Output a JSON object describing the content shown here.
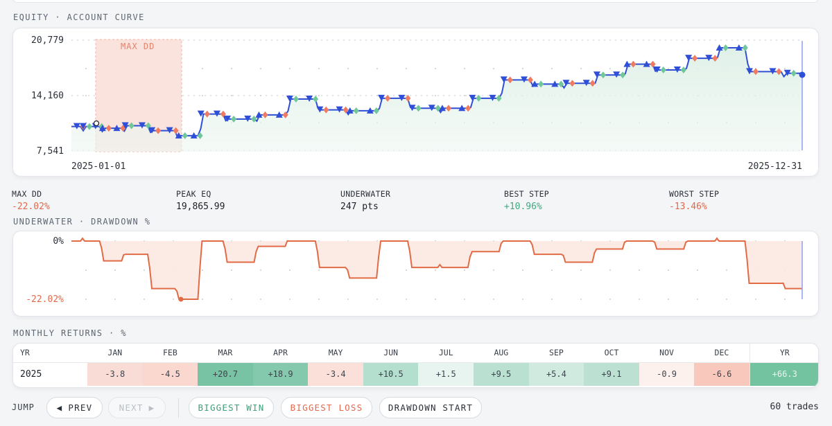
{
  "equity": {
    "title": "EQUITY · ACCOUNT CURVE",
    "y_ticks": [
      "20,779",
      "14,160",
      "7,541"
    ],
    "x_start": "2025-01-01",
    "x_end": "2025-12-31",
    "dd_label": "MAX DD",
    "colors": {
      "line": "#2f4fd6",
      "fill": "#e3f1ea",
      "dd_zone": "#fbe3dd",
      "dd_text": "#e3826c",
      "win": "#6fc79a",
      "loss": "#ee7b62",
      "marker": "#2f4fd6"
    }
  },
  "stats": [
    {
      "label": "MAX DD",
      "value": "-22.02%",
      "tone": "neg"
    },
    {
      "label": "PEAK EQ",
      "value": "19,865.99",
      "tone": "neutral"
    },
    {
      "label": "UNDERWATER",
      "value": "247 pts",
      "tone": "neutral"
    },
    {
      "label": "BEST STEP",
      "value": "+10.96%",
      "tone": "pos"
    },
    {
      "label": "WORST STEP",
      "value": "-13.46%",
      "tone": "neg"
    }
  ],
  "underwater": {
    "title": "UNDERWATER · DRAWDOWN %",
    "y_top": "0%",
    "y_bottom": "-22.02%",
    "colors": {
      "line": "#e26a45",
      "fill": "#fbe6df"
    }
  },
  "monthly": {
    "title": "MONTHLY RETURNS · %",
    "yr_header": "YR",
    "months": [
      "JAN",
      "FEB",
      "MAR",
      "APR",
      "MAY",
      "JUN",
      "JUL",
      "AUG",
      "SEP",
      "OCT",
      "NOV",
      "DEC"
    ],
    "total_header": "YR",
    "row": {
      "year": "2025",
      "values": [
        "-3.8",
        "-4.5",
        "+20.7",
        "+18.9",
        "-3.4",
        "+10.5",
        "+1.5",
        "+9.5",
        "+5.4",
        "+9.1",
        "-0.9",
        "-6.6"
      ],
      "total": "+66.3"
    }
  },
  "toolbar": {
    "jump_label": "JUMP",
    "prev": "PREV",
    "next": "NEXT",
    "biggest_win": "BIGGEST WIN",
    "biggest_loss": "BIGGEST LOSS",
    "drawdown_start": "DRAWDOWN START",
    "trades": "60 trades"
  },
  "chart_data": [
    {
      "type": "line",
      "title": "EQUITY · ACCOUNT CURVE",
      "x": [
        "2025-01-01",
        "2025-01-10",
        "2025-01-20",
        "2025-02-01",
        "2025-02-15",
        "2025-02-28",
        "2025-03-10",
        "2025-03-25",
        "2025-04-10",
        "2025-04-25",
        "2025-05-10",
        "2025-05-25",
        "2025-06-10",
        "2025-06-25",
        "2025-07-10",
        "2025-07-25",
        "2025-08-10",
        "2025-08-25",
        "2025-09-10",
        "2025-09-25",
        "2025-10-10",
        "2025-10-25",
        "2025-11-10",
        "2025-11-25",
        "2025-12-10",
        "2025-12-31"
      ],
      "series": [
        {
          "values": [
            10400,
            10400,
            10200,
            10500,
            9900,
            9300,
            11900,
            11300,
            11800,
            13700,
            12400,
            12300,
            13800,
            12600,
            12600,
            13800,
            16000,
            15500,
            15600,
            16600,
            17900,
            17200,
            18600,
            19866,
            17000,
            16800
          ]
        }
      ],
      "y_ticks": [
        7541,
        14160,
        20779
      ],
      "ylim": [
        7541,
        20779
      ]
    },
    {
      "type": "area",
      "title": "UNDERWATER · DRAWDOWN %",
      "x": [
        "2025-01-01",
        "2025-01-10",
        "2025-01-20",
        "2025-02-01",
        "2025-02-15",
        "2025-02-28",
        "2025-03-10",
        "2025-03-25",
        "2025-04-10",
        "2025-04-25",
        "2025-05-10",
        "2025-05-25",
        "2025-06-10",
        "2025-06-25",
        "2025-07-10",
        "2025-07-25",
        "2025-08-10",
        "2025-08-25",
        "2025-09-10",
        "2025-09-25",
        "2025-10-10",
        "2025-10-25",
        "2025-11-10",
        "2025-11-25",
        "2025-12-10",
        "2025-12-31"
      ],
      "series": [
        {
          "values": [
            0,
            0,
            -7.5,
            -5,
            -18,
            -22.02,
            0,
            -8,
            -2,
            0,
            -10,
            -14,
            0,
            -10,
            -10,
            -4,
            0,
            -5,
            -8,
            -3,
            0,
            -3,
            0,
            0,
            -16,
            -18
          ]
        }
      ],
      "ylim": [
        -22.02,
        0
      ]
    },
    {
      "type": "table",
      "title": "MONTHLY RETURNS · %",
      "categories": [
        "JAN",
        "FEB",
        "MAR",
        "APR",
        "MAY",
        "JUN",
        "JUL",
        "AUG",
        "SEP",
        "OCT",
        "NOV",
        "DEC"
      ],
      "values": [
        -3.8,
        -4.5,
        20.7,
        18.9,
        -3.4,
        10.5,
        1.5,
        9.5,
        5.4,
        9.1,
        -0.9,
        -6.6
      ],
      "total": 66.3
    }
  ]
}
